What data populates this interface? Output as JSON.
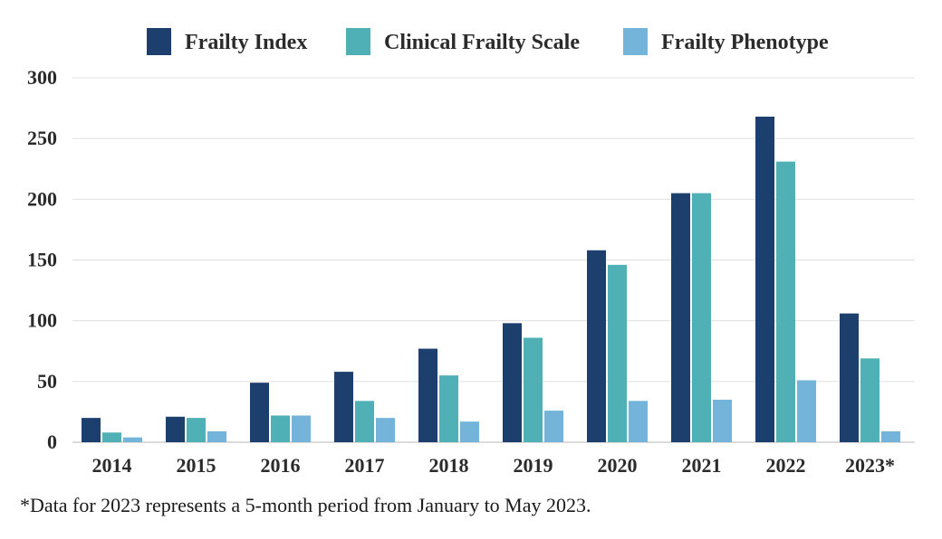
{
  "chart_data": {
    "type": "bar",
    "title": "",
    "xlabel": "",
    "ylabel": "",
    "categories": [
      "2014",
      "2015",
      "2016",
      "2017",
      "2018",
      "2019",
      "2020",
      "2021",
      "2022",
      "2023*"
    ],
    "series": [
      {
        "name": "Frailty Index",
        "color": "#1c3f6e",
        "values": [
          20,
          21,
          49,
          58,
          77,
          98,
          158,
          205,
          268,
          106
        ]
      },
      {
        "name": "Clinical Frailty Scale",
        "color": "#4fb0b5",
        "values": [
          8,
          20,
          22,
          34,
          55,
          86,
          146,
          205,
          231,
          69
        ]
      },
      {
        "name": "Frailty Phenotype",
        "color": "#74b4db",
        "values": [
          4,
          9,
          22,
          20,
          17,
          26,
          34,
          35,
          51,
          9
        ]
      }
    ],
    "ylim": [
      0,
      300
    ],
    "yticks": [
      0,
      50,
      100,
      150,
      200,
      250,
      300
    ],
    "grid": true,
    "legend_position": "top-center",
    "footnote": "*Data for 2023 represents a 5-month period from January to May 2023."
  }
}
